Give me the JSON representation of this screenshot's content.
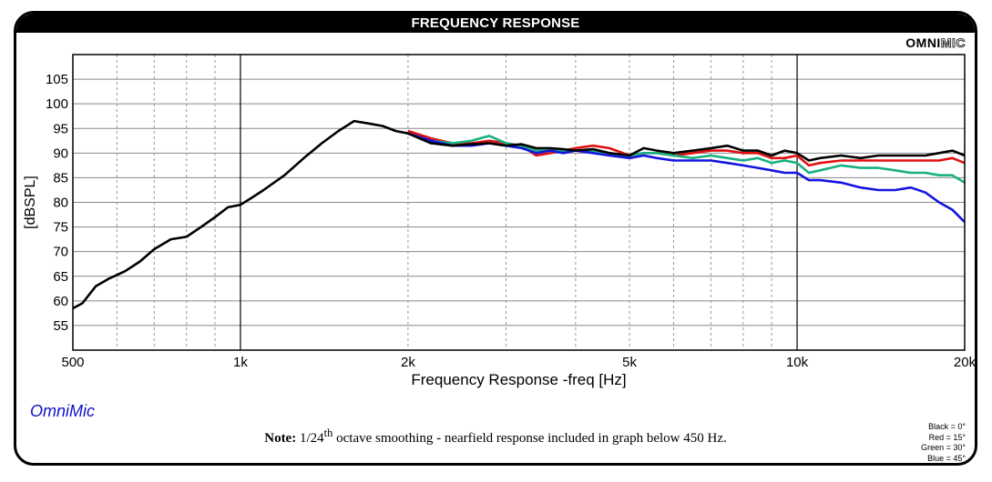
{
  "header": {
    "title": "FREQUENCY RESPONSE",
    "logo_bold": "OMNI",
    "logo_outline": "MIC"
  },
  "footer": {
    "brand": "OmniMic",
    "note_label": "Note:",
    "note_pre": "1/24",
    "note_sup": "th",
    "note_post": "octave smoothing - nearfield response included in graph below 450 Hz.",
    "legend": [
      "Black = 0°",
      "Red = 15°",
      "Green = 30°",
      "Blue = 45°"
    ]
  },
  "chart_data": {
    "type": "line",
    "title": "FREQUENCY RESPONSE",
    "xlabel": "Frequency Response -freq [Hz]",
    "ylabel": "[dBSPL]",
    "x_scale": "log",
    "xlim": [
      500,
      20000
    ],
    "ylim": [
      50,
      110
    ],
    "x_ticks": [
      500,
      1000,
      2000,
      5000,
      10000,
      20000
    ],
    "x_tick_labels": [
      "500",
      "1k",
      "2k",
      "5k",
      "10k",
      "20k"
    ],
    "y_ticks": [
      55,
      60,
      65,
      70,
      75,
      80,
      85,
      90,
      95,
      100,
      105
    ],
    "grid": true,
    "colors": {
      "Black": "#000000",
      "Red": "#e01010",
      "Green": "#18b080",
      "Blue": "#1414e0"
    },
    "series": [
      {
        "name": "Black = 0°",
        "color": "#000000",
        "points": [
          [
            500,
            58.5
          ],
          [
            520,
            59.5
          ],
          [
            550,
            63
          ],
          [
            580,
            64.5
          ],
          [
            620,
            66
          ],
          [
            660,
            68
          ],
          [
            700,
            70.5
          ],
          [
            750,
            72.5
          ],
          [
            800,
            73
          ],
          [
            850,
            75
          ],
          [
            900,
            77
          ],
          [
            950,
            79
          ],
          [
            1000,
            79.5
          ],
          [
            1050,
            81
          ],
          [
            1100,
            82.5
          ],
          [
            1200,
            85.5
          ],
          [
            1300,
            89
          ],
          [
            1400,
            92
          ],
          [
            1500,
            94.5
          ],
          [
            1600,
            96.5
          ],
          [
            1700,
            96
          ],
          [
            1800,
            95.5
          ],
          [
            1900,
            94.5
          ],
          [
            2000,
            94
          ],
          [
            2200,
            92
          ],
          [
            2400,
            91.5
          ],
          [
            2600,
            91.8
          ],
          [
            2800,
            92
          ],
          [
            3000,
            91.5
          ],
          [
            3200,
            91.8
          ],
          [
            3400,
            91
          ],
          [
            3600,
            91
          ],
          [
            3800,
            90.8
          ],
          [
            4000,
            90.5
          ],
          [
            4300,
            90.8
          ],
          [
            4600,
            90
          ],
          [
            5000,
            89.5
          ],
          [
            5300,
            91
          ],
          [
            5600,
            90.5
          ],
          [
            6000,
            90
          ],
          [
            6500,
            90.5
          ],
          [
            7000,
            91
          ],
          [
            7500,
            91.5
          ],
          [
            8000,
            90.5
          ],
          [
            8500,
            90.5
          ],
          [
            9000,
            89.5
          ],
          [
            9500,
            90.5
          ],
          [
            10000,
            90
          ],
          [
            10500,
            88.5
          ],
          [
            11000,
            89
          ],
          [
            12000,
            89.5
          ],
          [
            13000,
            89
          ],
          [
            14000,
            89.5
          ],
          [
            15000,
            89.5
          ],
          [
            16000,
            89.5
          ],
          [
            17000,
            89.5
          ],
          [
            18000,
            90
          ],
          [
            19000,
            90.5
          ],
          [
            20000,
            89.5
          ]
        ]
      },
      {
        "name": "Red = 15°",
        "color": "#e01010",
        "points": [
          [
            2000,
            94.5
          ],
          [
            2200,
            93
          ],
          [
            2400,
            92
          ],
          [
            2600,
            92
          ],
          [
            2800,
            92.5
          ],
          [
            3000,
            92
          ],
          [
            3200,
            91.5
          ],
          [
            3400,
            89.5
          ],
          [
            3600,
            90
          ],
          [
            3800,
            90.5
          ],
          [
            4000,
            91
          ],
          [
            4300,
            91.5
          ],
          [
            4600,
            91
          ],
          [
            5000,
            89.5
          ],
          [
            5300,
            90
          ],
          [
            5600,
            90
          ],
          [
            6000,
            89.5
          ],
          [
            6500,
            90
          ],
          [
            7000,
            90.5
          ],
          [
            7500,
            90.5
          ],
          [
            8000,
            90
          ],
          [
            8500,
            90
          ],
          [
            9000,
            89
          ],
          [
            9500,
            89
          ],
          [
            10000,
            89.5
          ],
          [
            10500,
            87.5
          ],
          [
            11000,
            88
          ],
          [
            12000,
            88.5
          ],
          [
            13000,
            88.5
          ],
          [
            14000,
            88.5
          ],
          [
            15000,
            88.5
          ],
          [
            16000,
            88.5
          ],
          [
            17000,
            88.5
          ],
          [
            18000,
            88.5
          ],
          [
            19000,
            89
          ],
          [
            20000,
            88
          ]
        ]
      },
      {
        "name": "Green = 30°",
        "color": "#18b080",
        "points": [
          [
            2000,
            94
          ],
          [
            2200,
            92.5
          ],
          [
            2400,
            92
          ],
          [
            2600,
            92.5
          ],
          [
            2800,
            93.5
          ],
          [
            3000,
            92
          ],
          [
            3200,
            91.5
          ],
          [
            3400,
            90.5
          ],
          [
            3600,
            90.5
          ],
          [
            3800,
            90.5
          ],
          [
            4000,
            90.5
          ],
          [
            4300,
            90.5
          ],
          [
            4600,
            90
          ],
          [
            5000,
            89.5
          ],
          [
            5300,
            90
          ],
          [
            5600,
            90
          ],
          [
            6000,
            89.5
          ],
          [
            6500,
            89
          ],
          [
            7000,
            89.5
          ],
          [
            7500,
            89
          ],
          [
            8000,
            88.5
          ],
          [
            8500,
            89
          ],
          [
            9000,
            88
          ],
          [
            9500,
            88.5
          ],
          [
            10000,
            88
          ],
          [
            10500,
            86
          ],
          [
            11000,
            86.5
          ],
          [
            12000,
            87.5
          ],
          [
            13000,
            87
          ],
          [
            14000,
            87
          ],
          [
            15000,
            86.5
          ],
          [
            16000,
            86
          ],
          [
            17000,
            86
          ],
          [
            18000,
            85.5
          ],
          [
            19000,
            85.5
          ],
          [
            20000,
            84
          ]
        ]
      },
      {
        "name": "Blue = 45°",
        "color": "#1414e0",
        "points": [
          [
            2000,
            94
          ],
          [
            2200,
            92.5
          ],
          [
            2400,
            91.5
          ],
          [
            2600,
            91.5
          ],
          [
            2800,
            92
          ],
          [
            3000,
            91.5
          ],
          [
            3200,
            91
          ],
          [
            3400,
            90
          ],
          [
            3600,
            90.5
          ],
          [
            3800,
            90
          ],
          [
            4000,
            90.5
          ],
          [
            4300,
            90
          ],
          [
            4600,
            89.5
          ],
          [
            5000,
            89
          ],
          [
            5300,
            89.5
          ],
          [
            5600,
            89
          ],
          [
            6000,
            88.5
          ],
          [
            6500,
            88.5
          ],
          [
            7000,
            88.5
          ],
          [
            7500,
            88
          ],
          [
            8000,
            87.5
          ],
          [
            8500,
            87
          ],
          [
            9000,
            86.5
          ],
          [
            9500,
            86
          ],
          [
            10000,
            86
          ],
          [
            10500,
            84.5
          ],
          [
            11000,
            84.5
          ],
          [
            12000,
            84
          ],
          [
            13000,
            83
          ],
          [
            14000,
            82.5
          ],
          [
            15000,
            82.5
          ],
          [
            16000,
            83
          ],
          [
            17000,
            82
          ],
          [
            18000,
            80
          ],
          [
            19000,
            78.5
          ],
          [
            20000,
            76
          ]
        ]
      }
    ]
  }
}
